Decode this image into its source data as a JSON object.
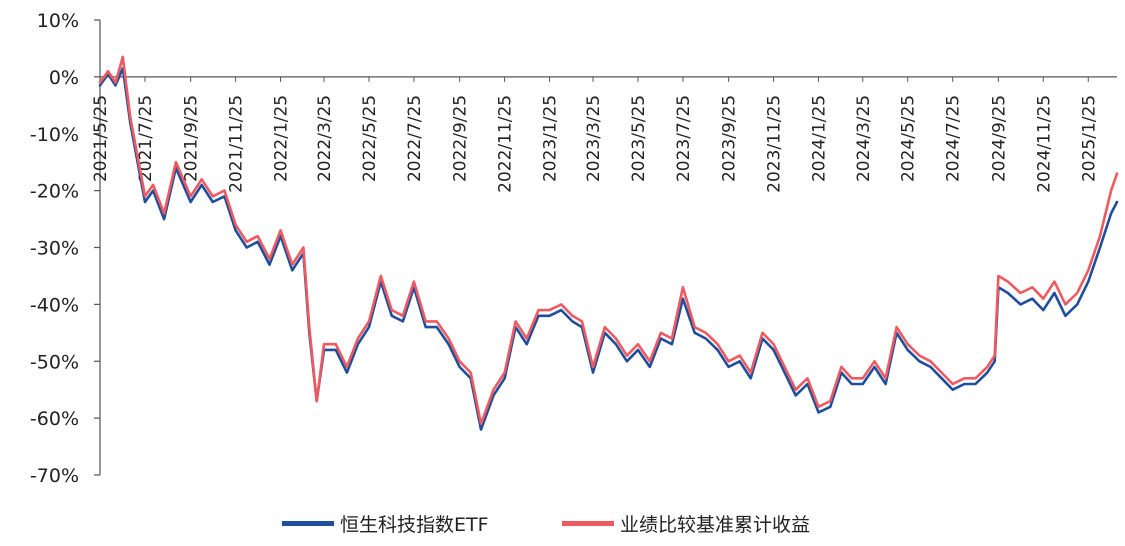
{
  "colors": {
    "etf": "#1f4e9c",
    "benchmark": "#ee5a5f",
    "axis": "#555555",
    "text": "#222222"
  },
  "chart_data": {
    "type": "line",
    "title": "",
    "xlabel": "",
    "ylabel": "",
    "y_ticks": [
      "10%",
      "0%",
      "-10%",
      "-20%",
      "-30%",
      "-40%",
      "-50%",
      "-60%",
      "-70%"
    ],
    "ylim": [
      -70,
      10
    ],
    "x_ticks": [
      "2021/5/25",
      "2021/7/25",
      "2021/9/25",
      "2021/11/25",
      "2022/1/25",
      "2022/3/25",
      "2022/5/25",
      "2022/7/25",
      "2022/9/25",
      "2022/11/25",
      "2023/1/25",
      "2023/3/25",
      "2023/5/25",
      "2023/7/25",
      "2023/9/25",
      "2023/11/25",
      "2024/1/25",
      "2024/3/25",
      "2024/5/25",
      "2024/7/25",
      "2024/9/25",
      "2024/11/25",
      "2025/1/25"
    ],
    "legend_position": "bottom",
    "grid": false,
    "series": [
      {
        "name": "恒生科技指数ETF",
        "color": "#1f4e9c",
        "x": [
          "2021/5/25",
          "2021/6/5",
          "2021/6/15",
          "2021/6/25",
          "2021/7/5",
          "2021/7/15",
          "2021/7/25",
          "2021/8/5",
          "2021/8/20",
          "2021/9/5",
          "2021/9/25",
          "2021/10/10",
          "2021/10/25",
          "2021/11/10",
          "2021/11/25",
          "2021/12/10",
          "2021/12/25",
          "2022/1/10",
          "2022/1/25",
          "2022/2/10",
          "2022/2/25",
          "2022/3/5",
          "2022/3/15",
          "2022/3/25",
          "2022/4/10",
          "2022/4/25",
          "2022/5/10",
          "2022/5/25",
          "2022/6/10",
          "2022/6/25",
          "2022/7/10",
          "2022/7/25",
          "2022/8/10",
          "2022/8/25",
          "2022/9/10",
          "2022/9/25",
          "2022/10/10",
          "2022/10/24",
          "2022/11/10",
          "2022/11/25",
          "2022/12/10",
          "2022/12/25",
          "2023/1/10",
          "2023/1/25",
          "2023/2/10",
          "2023/2/25",
          "2023/3/10",
          "2023/3/25",
          "2023/4/10",
          "2023/4/25",
          "2023/5/10",
          "2023/5/25",
          "2023/6/10",
          "2023/6/25",
          "2023/7/10",
          "2023/7/25",
          "2023/8/10",
          "2023/8/25",
          "2023/9/10",
          "2023/9/25",
          "2023/10/10",
          "2023/10/25",
          "2023/11/10",
          "2023/11/25",
          "2023/12/10",
          "2023/12/25",
          "2024/1/10",
          "2024/1/25",
          "2024/2/10",
          "2024/2/25",
          "2024/3/10",
          "2024/3/25",
          "2024/4/10",
          "2024/4/25",
          "2024/5/10",
          "2024/5/25",
          "2024/6/10",
          "2024/6/25",
          "2024/7/10",
          "2024/7/25",
          "2024/8/10",
          "2024/8/25",
          "2024/9/10",
          "2024/9/20",
          "2024/9/25",
          "2024/10/8",
          "2024/10/25",
          "2024/11/10",
          "2024/11/25",
          "2024/12/10",
          "2024/12/25",
          "2025/1/10",
          "2025/1/25",
          "2025/2/10",
          "2025/2/25",
          "2025/3/5"
        ],
        "values": [
          -1.5,
          0.5,
          -1.5,
          1.5,
          -8,
          -15,
          -22,
          -20,
          -25,
          -16,
          -22,
          -19,
          -22,
          -21,
          -27,
          -30,
          -29,
          -33,
          -28,
          -34,
          -31,
          -45,
          -57,
          -48,
          -48,
          -52,
          -47,
          -44,
          -36,
          -42,
          -43,
          -37,
          -44,
          -44,
          -47,
          -51,
          -53,
          -62,
          -56,
          -53,
          -44,
          -47,
          -42,
          -42,
          -41,
          -43,
          -44,
          -52,
          -45,
          -47,
          -50,
          -48,
          -51,
          -46,
          -47,
          -39,
          -45,
          -46,
          -48,
          -51,
          -50,
          -53,
          -46,
          -48,
          -52,
          -56,
          -54,
          -59,
          -58,
          -52,
          -54,
          -54,
          -51,
          -54,
          -45,
          -48,
          -50,
          -51,
          -53,
          -55,
          -54,
          -54,
          -52,
          -50,
          -37,
          -38,
          -40,
          -39,
          -41,
          -38,
          -42,
          -40,
          -36,
          -30,
          -24,
          -22
        ]
      },
      {
        "name": "业绩比较基准累计收益",
        "color": "#ee5a5f",
        "x": [
          "2021/5/25",
          "2021/6/5",
          "2021/6/15",
          "2021/6/25",
          "2021/7/5",
          "2021/7/15",
          "2021/7/25",
          "2021/8/5",
          "2021/8/20",
          "2021/9/5",
          "2021/9/25",
          "2021/10/10",
          "2021/10/25",
          "2021/11/10",
          "2021/11/25",
          "2021/12/10",
          "2021/12/25",
          "2022/1/10",
          "2022/1/25",
          "2022/2/10",
          "2022/2/25",
          "2022/3/5",
          "2022/3/15",
          "2022/3/25",
          "2022/4/10",
          "2022/4/25",
          "2022/5/10",
          "2022/5/25",
          "2022/6/10",
          "2022/6/25",
          "2022/7/10",
          "2022/7/25",
          "2022/8/10",
          "2022/8/25",
          "2022/9/10",
          "2022/9/25",
          "2022/10/10",
          "2022/10/24",
          "2022/11/10",
          "2022/11/25",
          "2022/12/10",
          "2022/12/25",
          "2023/1/10",
          "2023/1/25",
          "2023/2/10",
          "2023/2/25",
          "2023/3/10",
          "2023/3/25",
          "2023/4/10",
          "2023/4/25",
          "2023/5/10",
          "2023/5/25",
          "2023/6/10",
          "2023/6/25",
          "2023/7/10",
          "2023/7/25",
          "2023/8/10",
          "2023/8/25",
          "2023/9/10",
          "2023/9/25",
          "2023/10/10",
          "2023/10/25",
          "2023/11/10",
          "2023/11/25",
          "2023/12/10",
          "2023/12/25",
          "2024/1/10",
          "2024/1/25",
          "2024/2/10",
          "2024/2/25",
          "2024/3/10",
          "2024/3/25",
          "2024/4/10",
          "2024/4/25",
          "2024/5/10",
          "2024/5/25",
          "2024/6/10",
          "2024/6/25",
          "2024/7/10",
          "2024/7/25",
          "2024/8/10",
          "2024/8/25",
          "2024/9/10",
          "2024/9/20",
          "2024/9/25",
          "2024/10/8",
          "2024/10/25",
          "2024/11/10",
          "2024/11/25",
          "2024/12/10",
          "2024/12/25",
          "2025/1/10",
          "2025/1/25",
          "2025/2/10",
          "2025/2/25",
          "2025/3/5"
        ],
        "values": [
          -1,
          1,
          -1,
          3.5,
          -7,
          -14,
          -21,
          -19,
          -24,
          -15,
          -21,
          -18,
          -21,
          -20,
          -26,
          -29,
          -28,
          -32,
          -27,
          -33,
          -30,
          -44,
          -57,
          -47,
          -47,
          -51,
          -46,
          -43,
          -35,
          -41,
          -42,
          -36,
          -43,
          -43,
          -46,
          -50,
          -52,
          -61,
          -55,
          -52,
          -43,
          -46,
          -41,
          -41,
          -40,
          -42,
          -43,
          -51,
          -44,
          -46,
          -49,
          -47,
          -50,
          -45,
          -46,
          -37,
          -44,
          -45,
          -47,
          -50,
          -49,
          -52,
          -45,
          -47,
          -51,
          -55,
          -53,
          -58,
          -57,
          -51,
          -53,
          -53,
          -50,
          -53,
          -44,
          -47,
          -49,
          -50,
          -52,
          -54,
          -53,
          -53,
          -51,
          -49,
          -35,
          -36,
          -38,
          -37,
          -39,
          -36,
          -40,
          -38,
          -34,
          -28,
          -20,
          -17
        ]
      }
    ]
  }
}
